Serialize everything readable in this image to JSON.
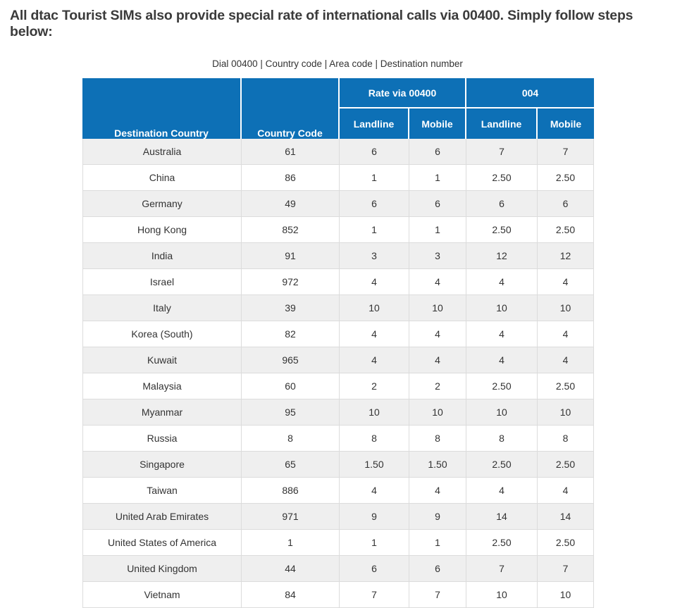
{
  "page": {
    "heading": "All dtac Tourist SIMs also provide special rate of international calls via 00400. Simply follow steps below:",
    "dial_instruction": "Dial 00400 | Country code | Area code | Destination number"
  },
  "colors": {
    "header_bg": "#0d70b6",
    "header_text": "#ffffff",
    "row_alt_bg": "#efefef",
    "row_bg": "#ffffff",
    "border": "#dcdcdc",
    "body_text": "#333333",
    "heading_text": "#3b3b3b"
  },
  "table": {
    "header": {
      "destination_country": "Destination Country",
      "country_code": "Country Code",
      "group_rate_00400": "Rate via 00400",
      "group_004": "004",
      "landline": "Landline",
      "mobile": "Mobile"
    },
    "rows": [
      {
        "country": "Australia",
        "code": "61",
        "landline_00400": "6",
        "mobile_00400": "6",
        "landline_004": "7",
        "mobile_004": "7"
      },
      {
        "country": "China",
        "code": "86",
        "landline_00400": "1",
        "mobile_00400": "1",
        "landline_004": "2.50",
        "mobile_004": "2.50"
      },
      {
        "country": "Germany",
        "code": "49",
        "landline_00400": "6",
        "mobile_00400": "6",
        "landline_004": "6",
        "mobile_004": "6"
      },
      {
        "country": "Hong Kong",
        "code": "852",
        "landline_00400": "1",
        "mobile_00400": "1",
        "landline_004": "2.50",
        "mobile_004": "2.50"
      },
      {
        "country": "India",
        "code": "91",
        "landline_00400": "3",
        "mobile_00400": "3",
        "landline_004": "12",
        "mobile_004": "12"
      },
      {
        "country": "Israel",
        "code": "972",
        "landline_00400": "4",
        "mobile_00400": "4",
        "landline_004": "4",
        "mobile_004": "4"
      },
      {
        "country": "Italy",
        "code": "39",
        "landline_00400": "10",
        "mobile_00400": "10",
        "landline_004": "10",
        "mobile_004": "10"
      },
      {
        "country": "Korea (South)",
        "code": "82",
        "landline_00400": "4",
        "mobile_00400": "4",
        "landline_004": "4",
        "mobile_004": "4"
      },
      {
        "country": "Kuwait",
        "code": "965",
        "landline_00400": "4",
        "mobile_00400": "4",
        "landline_004": "4",
        "mobile_004": "4"
      },
      {
        "country": "Malaysia",
        "code": "60",
        "landline_00400": "2",
        "mobile_00400": "2",
        "landline_004": "2.50",
        "mobile_004": "2.50"
      },
      {
        "country": "Myanmar",
        "code": "95",
        "landline_00400": "10",
        "mobile_00400": "10",
        "landline_004": "10",
        "mobile_004": "10"
      },
      {
        "country": "Russia",
        "code": "8",
        "landline_00400": "8",
        "mobile_00400": "8",
        "landline_004": "8",
        "mobile_004": "8"
      },
      {
        "country": "Singapore",
        "code": "65",
        "landline_00400": "1.50",
        "mobile_00400": "1.50",
        "landline_004": "2.50",
        "mobile_004": "2.50"
      },
      {
        "country": "Taiwan",
        "code": "886",
        "landline_00400": "4",
        "mobile_00400": "4",
        "landline_004": "4",
        "mobile_004": "4"
      },
      {
        "country": "United Arab Emirates",
        "code": "971",
        "landline_00400": "9",
        "mobile_00400": "9",
        "landline_004": "14",
        "mobile_004": "14"
      },
      {
        "country": "United States of America",
        "code": "1",
        "landline_00400": "1",
        "mobile_00400": "1",
        "landline_004": "2.50",
        "mobile_004": "2.50"
      },
      {
        "country": "United Kingdom",
        "code": "44",
        "landline_00400": "6",
        "mobile_00400": "6",
        "landline_004": "7",
        "mobile_004": "7"
      },
      {
        "country": "Vietnam",
        "code": "84",
        "landline_00400": "7",
        "mobile_00400": "7",
        "landline_004": "10",
        "mobile_004": "10"
      }
    ]
  }
}
